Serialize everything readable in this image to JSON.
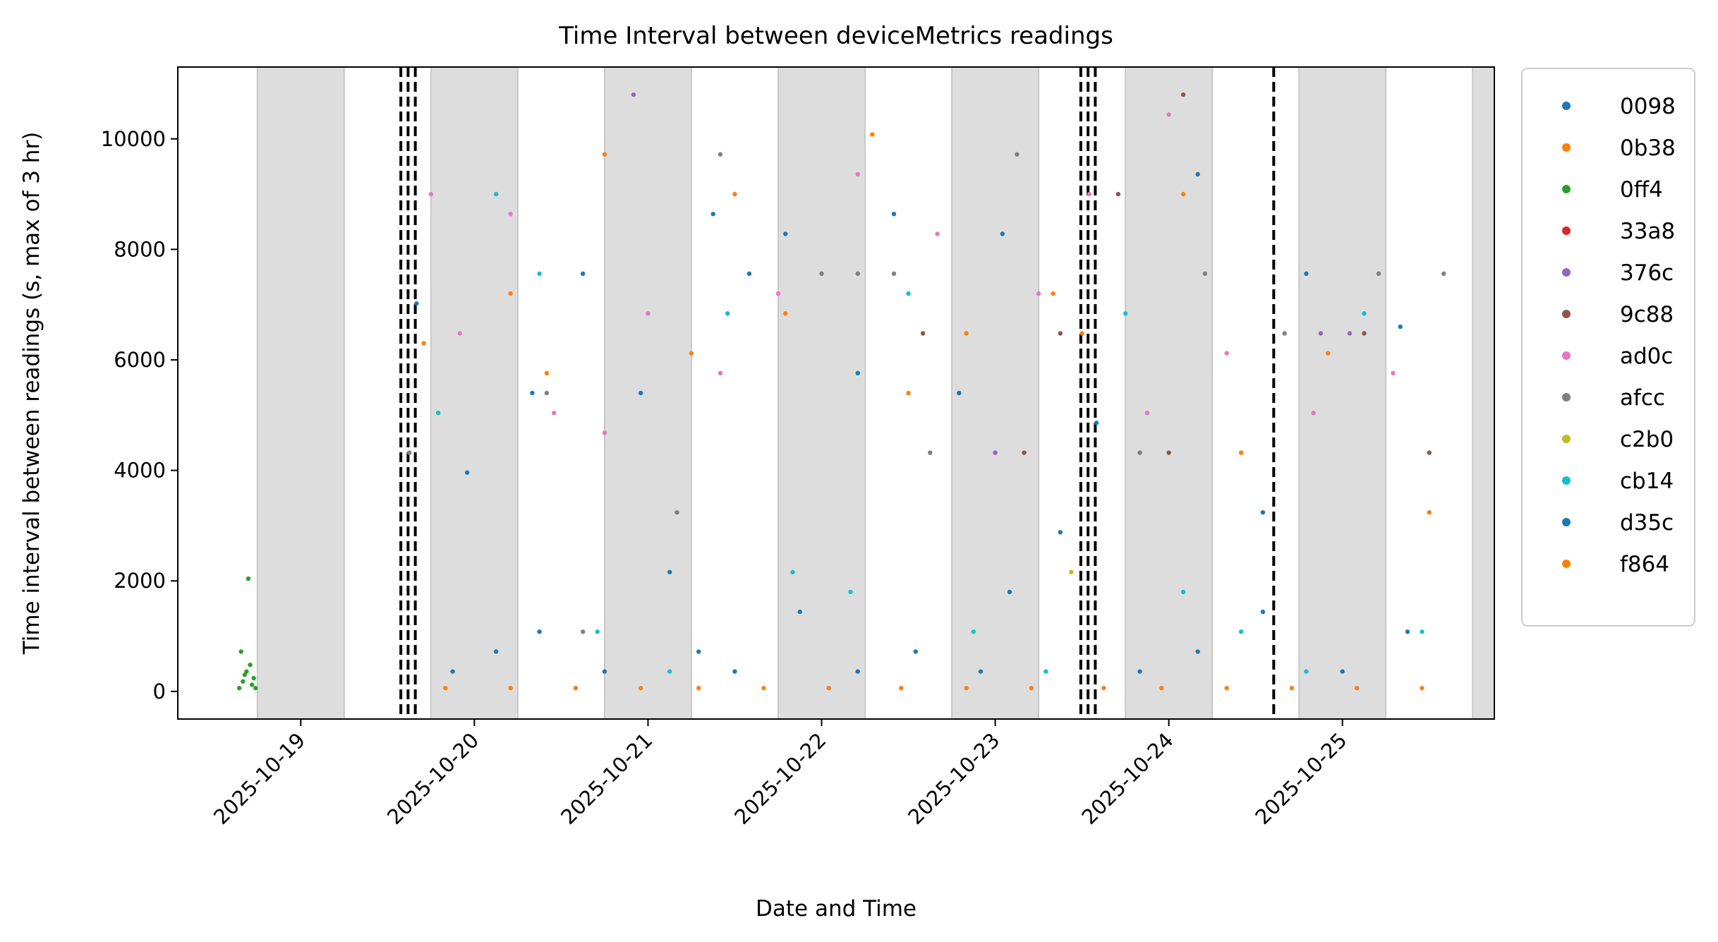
{
  "chart_data": {
    "type": "scatter",
    "title": "Time Interval between deviceMetrics readings",
    "xlabel": "Date and Time",
    "ylabel": "Time interval between readings (s, max of 3 hr)",
    "xlim": [
      "2025-10-18T07:00",
      "2025-10-25T21:00"
    ],
    "ylim": [
      -500,
      11300
    ],
    "x_ticks": [
      "2025-10-19",
      "2025-10-20",
      "2025-10-21",
      "2025-10-22",
      "2025-10-23",
      "2025-10-24",
      "2025-10-25"
    ],
    "y_ticks": [
      0,
      2000,
      4000,
      6000,
      8000,
      10000
    ],
    "grid": false,
    "legend_position": "outside-right",
    "night_shading": [
      [
        "2025-10-18T18:00",
        "2025-10-19T06:00"
      ],
      [
        "2025-10-19T18:00",
        "2025-10-20T06:00"
      ],
      [
        "2025-10-20T18:00",
        "2025-10-21T06:00"
      ],
      [
        "2025-10-21T18:00",
        "2025-10-22T06:00"
      ],
      [
        "2025-10-22T18:00",
        "2025-10-23T06:00"
      ],
      [
        "2025-10-23T18:00",
        "2025-10-24T06:00"
      ],
      [
        "2025-10-24T18:00",
        "2025-10-25T06:00"
      ],
      [
        "2025-10-25T18:00",
        "2025-10-26T06:00"
      ]
    ],
    "event_lines": [
      "2025-10-19T13:50",
      "2025-10-19T14:50",
      "2025-10-19T15:50",
      "2025-10-23T11:50",
      "2025-10-23T12:50",
      "2025-10-23T13:50",
      "2025-10-24T14:30"
    ],
    "series": [
      {
        "name": "0098",
        "color": "#1f77b4",
        "x": [
          "2025-10-19T21:00",
          "2025-10-20T03:00",
          "2025-10-20T09:00",
          "2025-10-20T18:00",
          "2025-10-21T03:00",
          "2025-10-21T07:00",
          "2025-10-21T12:00",
          "2025-10-21T21:00",
          "2025-10-22T05:00",
          "2025-10-22T13:00",
          "2025-10-22T22:00",
          "2025-10-23T02:00",
          "2025-10-23T20:00",
          "2025-10-24T04:00",
          "2025-10-24T13:00",
          "2025-10-25T00:00",
          "2025-10-25T09:00"
        ],
        "y": [
          360,
          720,
          1080,
          360,
          2160,
          720,
          360,
          1440,
          360,
          720,
          360,
          1800,
          360,
          720,
          1440,
          360,
          1080
        ]
      },
      {
        "name": "0b38",
        "color": "#ff7f0e",
        "x": [
          "2025-10-19T20:00",
          "2025-10-20T05:00",
          "2025-10-20T14:00",
          "2025-10-20T23:00",
          "2025-10-21T07:00",
          "2025-10-21T16:00",
          "2025-10-22T01:00",
          "2025-10-22T11:00",
          "2025-10-22T20:00",
          "2025-10-23T05:00",
          "2025-10-23T15:00",
          "2025-10-23T23:00",
          "2025-10-24T08:00",
          "2025-10-24T17:00",
          "2025-10-25T02:00",
          "2025-10-25T11:00"
        ],
        "y": [
          60,
          60,
          60,
          60,
          60,
          60,
          60,
          60,
          60,
          60,
          60,
          60,
          60,
          60,
          60,
          60
        ]
      },
      {
        "name": "0ff4",
        "color": "#2ca02c",
        "x": [
          "2025-10-18T15:30",
          "2025-10-18T15:45",
          "2025-10-18T16:00",
          "2025-10-18T16:15",
          "2025-10-18T16:30",
          "2025-10-18T16:45",
          "2025-10-18T17:00",
          "2025-10-18T17:15",
          "2025-10-18T17:30",
          "2025-10-18T17:45"
        ],
        "y": [
          60,
          720,
          180,
          300,
          360,
          2040,
          480,
          120,
          240,
          60
        ]
      },
      {
        "name": "33a8",
        "color": "#d62728",
        "x": [],
        "y": []
      },
      {
        "name": "376c",
        "color": "#9467bd",
        "x": [
          "2025-10-20T22:00",
          "2025-10-23T00:00",
          "2025-10-24T21:00",
          "2025-10-25T01:00"
        ],
        "y": [
          10800,
          4320,
          6480,
          6480
        ]
      },
      {
        "name": "9c88",
        "color": "#8c564b",
        "x": [
          "2025-10-22T14:00",
          "2025-10-23T04:00",
          "2025-10-23T09:00",
          "2025-10-23T17:00",
          "2025-10-24T00:00",
          "2025-10-24T02:00",
          "2025-10-25T03:00",
          "2025-10-25T12:00"
        ],
        "y": [
          6480,
          4320,
          6480,
          9000,
          4320,
          10800,
          6480,
          4320
        ]
      },
      {
        "name": "ad0c",
        "color": "#e377c2",
        "x": [
          "2025-10-19T18:00",
          "2025-10-19T22:00",
          "2025-10-20T05:00",
          "2025-10-20T11:00",
          "2025-10-20T18:00",
          "2025-10-21T00:00",
          "2025-10-21T10:00",
          "2025-10-21T18:00",
          "2025-10-22T05:00",
          "2025-10-22T16:00",
          "2025-10-22T19:00",
          "2025-10-23T06:00",
          "2025-10-23T13:00",
          "2025-10-23T21:00",
          "2025-10-24T00:00",
          "2025-10-24T08:00",
          "2025-10-24T20:00",
          "2025-10-25T07:00"
        ],
        "y": [
          9000,
          6480,
          8640,
          5040,
          4680,
          6840,
          5760,
          7200,
          9360,
          8280,
          5400,
          7200,
          9000,
          5040,
          10440,
          6120,
          5040,
          5760
        ]
      },
      {
        "name": "afcc",
        "color": "#7f7f7f",
        "x": [
          "2025-10-19T15:00",
          "2025-10-20T10:00",
          "2025-10-20T15:00",
          "2025-10-21T04:00",
          "2025-10-21T10:00",
          "2025-10-22T00:00",
          "2025-10-22T05:00",
          "2025-10-22T10:00",
          "2025-10-22T15:00",
          "2025-10-23T03:00",
          "2025-10-23T20:00",
          "2025-10-24T05:00",
          "2025-10-24T16:00",
          "2025-10-25T05:00",
          "2025-10-25T14:00"
        ],
        "y": [
          4320,
          5400,
          1080,
          3240,
          9720,
          7560,
          7560,
          7560,
          4320,
          9720,
          4320,
          7560,
          6480,
          7560,
          7560
        ]
      },
      {
        "name": "c2b0",
        "color": "#bcbd22",
        "x": [
          "2025-10-23T10:30"
        ],
        "y": [
          2160
        ]
      },
      {
        "name": "cb14",
        "color": "#17becf",
        "x": [
          "2025-10-19T19:00",
          "2025-10-20T03:00",
          "2025-10-20T09:00",
          "2025-10-20T17:00",
          "2025-10-21T03:00",
          "2025-10-21T11:00",
          "2025-10-21T20:00",
          "2025-10-22T04:00",
          "2025-10-22T12:00",
          "2025-10-22T21:00",
          "2025-10-23T07:00",
          "2025-10-23T18:00",
          "2025-10-24T02:00",
          "2025-10-24T10:00",
          "2025-10-24T19:00",
          "2025-10-25T03:00",
          "2025-10-25T11:00"
        ],
        "y": [
          5040,
          9000,
          7560,
          1080,
          360,
          6840,
          2160,
          1800,
          7200,
          1080,
          360,
          6840,
          1800,
          1080,
          360,
          6840,
          1080
        ]
      },
      {
        "name": "d35c",
        "color": "#1f77b4",
        "x": [
          "2025-10-19T16:00",
          "2025-10-19T23:00",
          "2025-10-20T08:00",
          "2025-10-20T15:00",
          "2025-10-20T23:00",
          "2025-10-21T09:00",
          "2025-10-21T14:00",
          "2025-10-21T19:00",
          "2025-10-22T05:00",
          "2025-10-22T10:00",
          "2025-10-22T19:00",
          "2025-10-23T01:00",
          "2025-10-23T09:00",
          "2025-10-23T14:00",
          "2025-10-24T04:00",
          "2025-10-24T13:00",
          "2025-10-24T19:00",
          "2025-10-25T08:00"
        ],
        "y": [
          7020,
          3960,
          5400,
          7560,
          5400,
          8640,
          7560,
          8280,
          5760,
          8640,
          5400,
          8280,
          2880,
          4860,
          9360,
          3240,
          7560,
          6600
        ]
      },
      {
        "name": "f864",
        "color": "#ff7f0e",
        "x": [
          "2025-10-19T17:00",
          "2025-10-20T05:00",
          "2025-10-20T10:00",
          "2025-10-20T18:00",
          "2025-10-21T06:00",
          "2025-10-21T12:00",
          "2025-10-21T19:00",
          "2025-10-22T07:00",
          "2025-10-22T12:00",
          "2025-10-22T20:00",
          "2025-10-23T08:00",
          "2025-10-23T12:00",
          "2025-10-24T02:00",
          "2025-10-24T10:00",
          "2025-10-24T22:00",
          "2025-10-25T12:00"
        ],
        "y": [
          6300,
          7200,
          5760,
          9720,
          6120,
          9000,
          6840,
          10080,
          5400,
          6480,
          7200,
          6480,
          9000,
          4320,
          6120,
          3240
        ]
      }
    ]
  }
}
